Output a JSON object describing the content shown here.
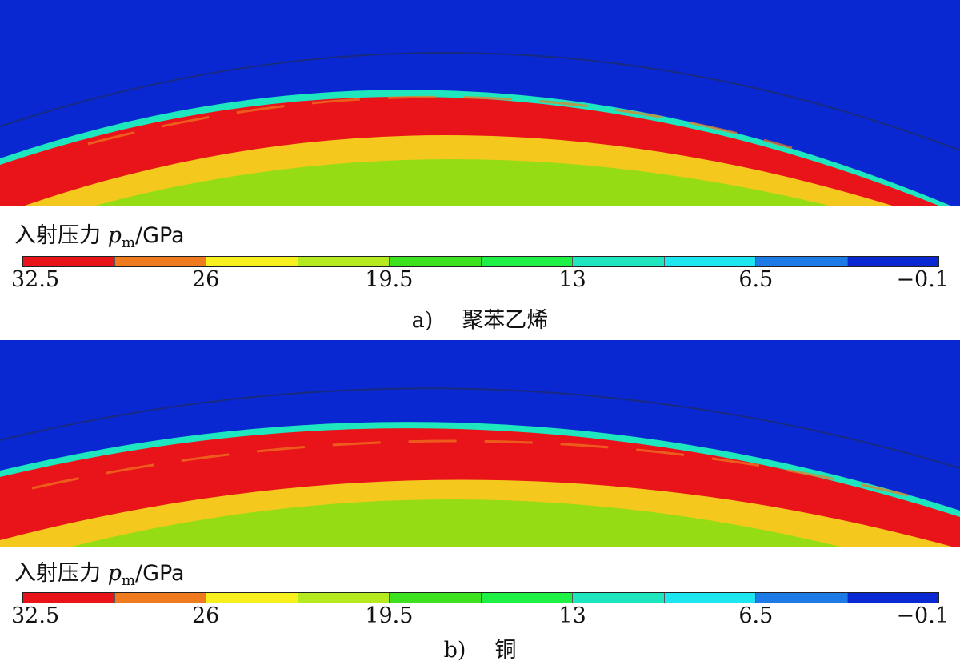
{
  "legend": {
    "label_text": "入射压力",
    "var": "p",
    "sub": "m",
    "unit": "/GPa"
  },
  "colorbar": {
    "colors": [
      "#e8141a",
      "#f07a1e",
      "#f5f01e",
      "#b4ea1e",
      "#3ce21e",
      "#1ef046",
      "#1ee6be",
      "#1ee6f0",
      "#1e7ae6",
      "#0a28d2"
    ],
    "ticks": [
      "32.5",
      "26",
      "19.5",
      "13",
      "6.5",
      "−0.1"
    ]
  },
  "panels": [
    {
      "id": "a",
      "label": "a)",
      "material": "聚苯乙烯"
    },
    {
      "id": "b",
      "label": "b)",
      "material": "铜"
    }
  ],
  "field_colors": {
    "background": "#0a28d2",
    "front": "#1ee6be",
    "peak": "#e8141a",
    "mid": "#f5c81e",
    "core": "#96dc14",
    "wave_line": "#1a2a6a"
  }
}
